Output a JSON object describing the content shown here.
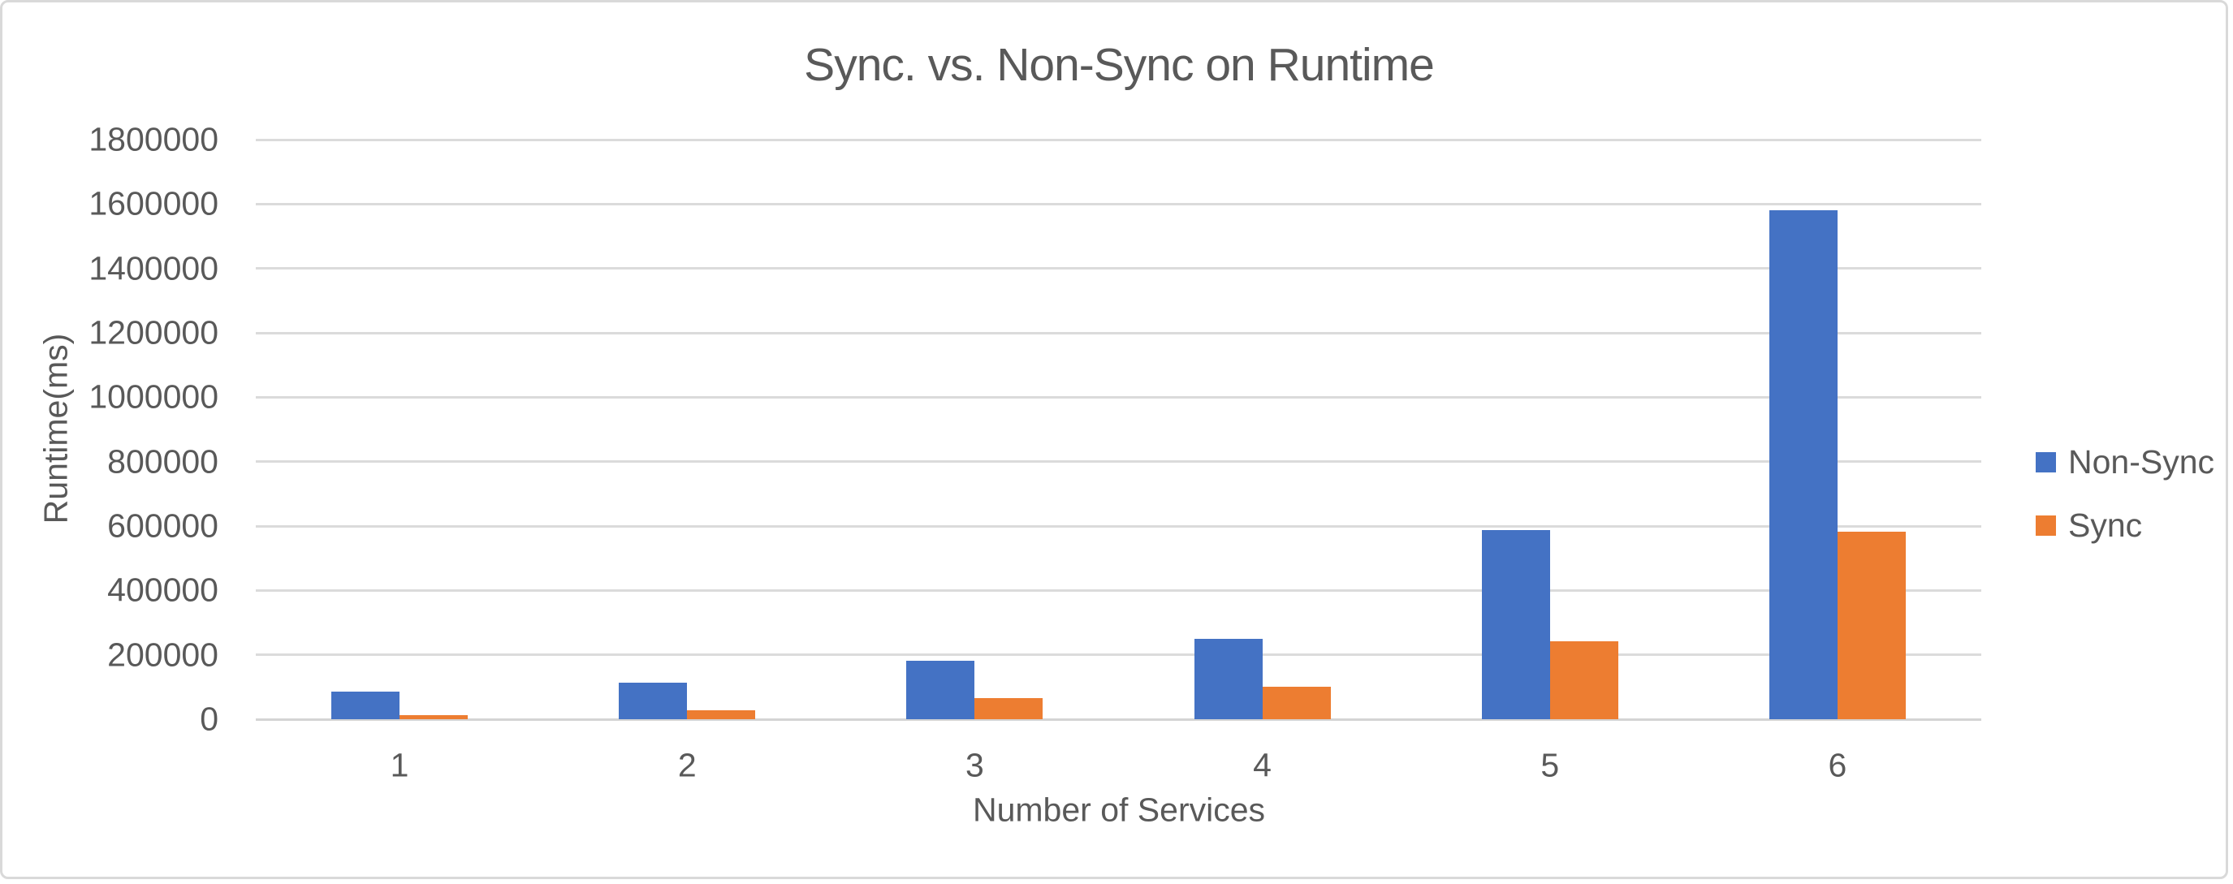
{
  "chart_data": {
    "type": "bar",
    "title": "Sync. vs. Non-Sync on Runtime",
    "xlabel": "Number of Services",
    "ylabel": "Runtime(ms)",
    "categories": [
      "1",
      "2",
      "3",
      "4",
      "5",
      "6"
    ],
    "series": [
      {
        "name": "Non-Sync",
        "color": "#4472C4",
        "values": [
          85000,
          113000,
          181000,
          250000,
          587000,
          1580000
        ]
      },
      {
        "name": "Sync",
        "color": "#ED7D31",
        "values": [
          13000,
          28000,
          65000,
          100000,
          243000,
          583000
        ]
      }
    ],
    "y_ticks": [
      "0",
      "200000",
      "400000",
      "600000",
      "800000",
      "1000000",
      "1200000",
      "1400000",
      "1600000",
      "1800000"
    ],
    "y_max": 1800000,
    "ylim": [
      0,
      1800000
    ],
    "grid": "horizontal",
    "legend_position": "right",
    "colors": {
      "text": "#595959",
      "gridline": "#DBDBDB",
      "axis_line": "#D4D4D4"
    }
  }
}
